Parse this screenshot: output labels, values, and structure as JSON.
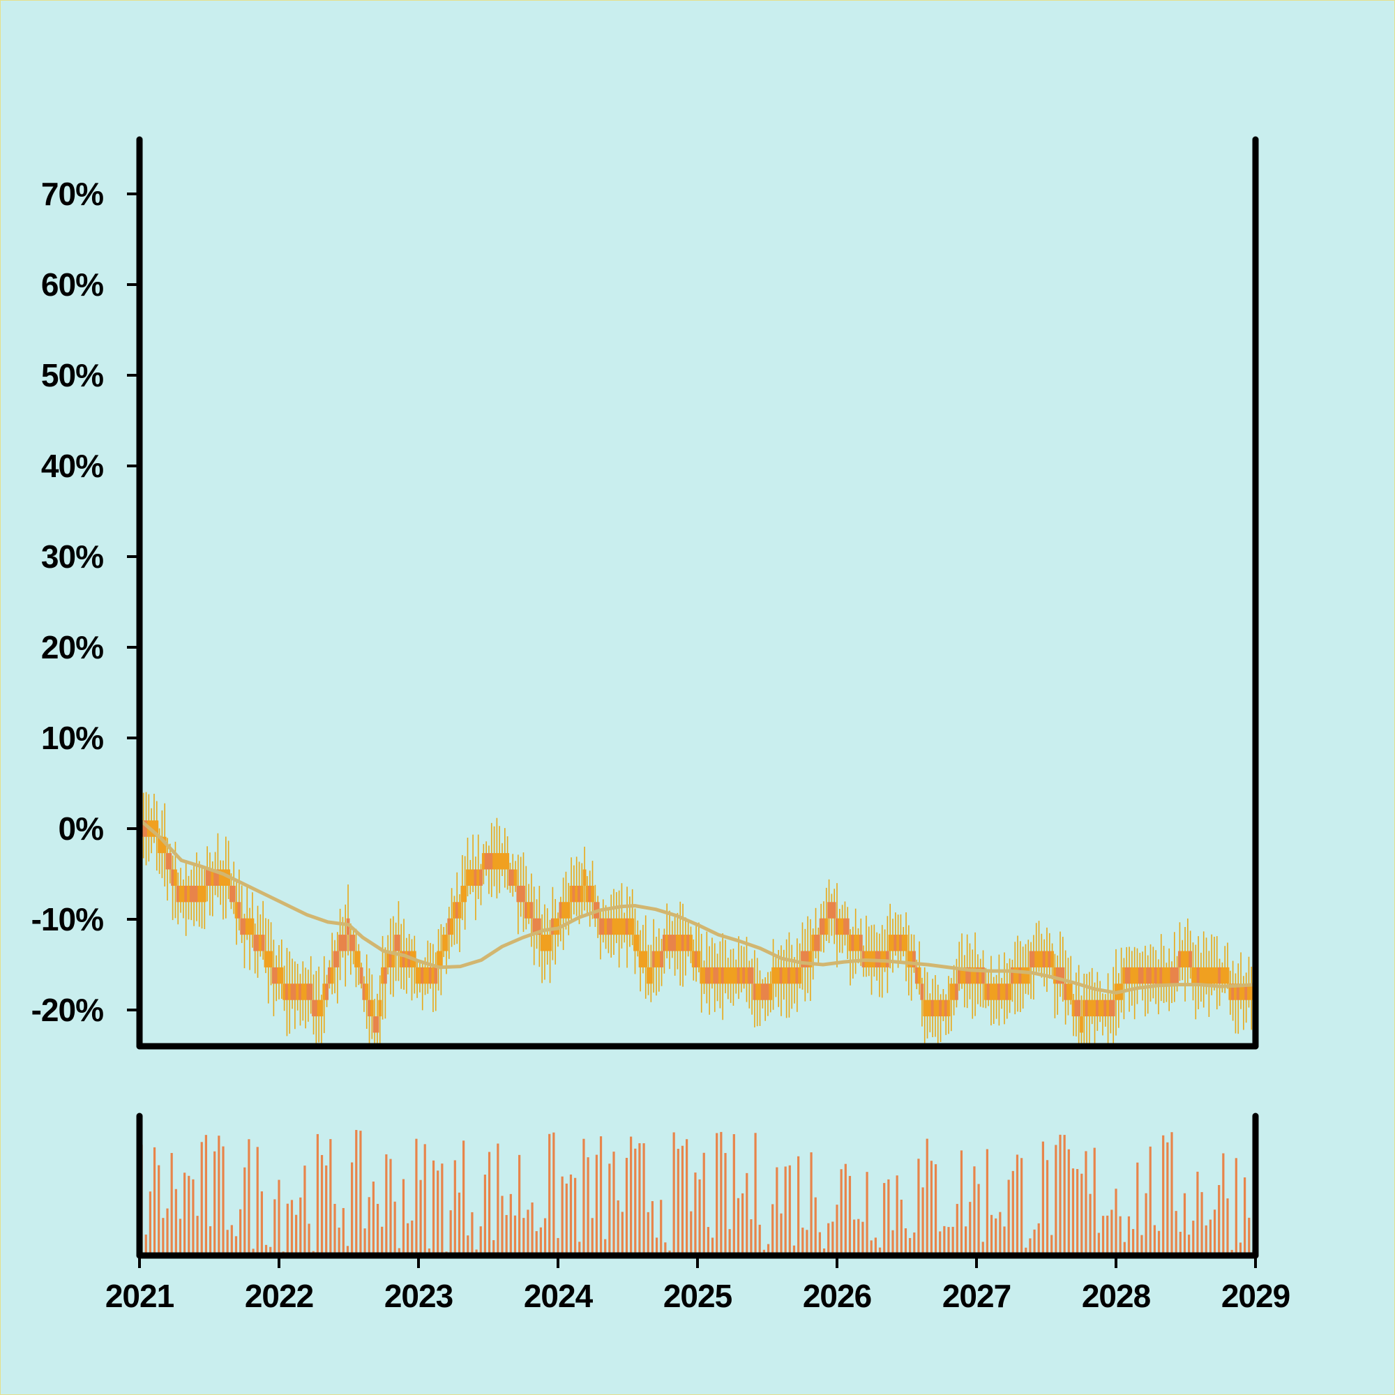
{
  "chart_data": {
    "type": "candlestick",
    "colors": {
      "background": "#c9eeee",
      "up": "#f0a020",
      "down": "#e8844a",
      "wick": "#e8a818",
      "moving_average": "#d2b670",
      "volume": "#e8844a",
      "axis": "#000000"
    },
    "x_axis": {
      "ticks": [
        "2021",
        "2022",
        "2023",
        "2024",
        "2025",
        "2026",
        "2027",
        "2028",
        "2029"
      ],
      "range": [
        2021,
        2029
      ]
    },
    "y_axis": {
      "ticks": [
        "-20%",
        "-10%",
        "0%",
        "10%",
        "20%",
        "30%",
        "40%",
        "50%",
        "60%",
        "70%"
      ],
      "range": [
        -24,
        76
      ]
    },
    "price_path": [
      [
        2021.0,
        1
      ],
      [
        2021.1,
        0
      ],
      [
        2021.2,
        -3
      ],
      [
        2021.3,
        -8
      ],
      [
        2021.4,
        -8
      ],
      [
        2021.5,
        -6
      ],
      [
        2021.65,
        -6
      ],
      [
        2021.75,
        -11
      ],
      [
        2021.85,
        -12
      ],
      [
        2021.95,
        -15
      ],
      [
        2022.05,
        -18
      ],
      [
        2022.2,
        -18
      ],
      [
        2022.3,
        -20
      ],
      [
        2022.4,
        -15
      ],
      [
        2022.5,
        -11
      ],
      [
        2022.6,
        -17
      ],
      [
        2022.7,
        -22
      ],
      [
        2022.75,
        -16
      ],
      [
        2022.85,
        -13
      ],
      [
        2022.95,
        -15
      ],
      [
        2023.1,
        -17
      ],
      [
        2023.2,
        -12
      ],
      [
        2023.35,
        -6
      ],
      [
        2023.5,
        -4
      ],
      [
        2023.6,
        -3
      ],
      [
        2023.7,
        -6
      ],
      [
        2023.8,
        -9
      ],
      [
        2023.9,
        -13
      ],
      [
        2024.0,
        -10
      ],
      [
        2024.1,
        -8
      ],
      [
        2024.2,
        -6
      ],
      [
        2024.3,
        -10
      ],
      [
        2024.45,
        -10
      ],
      [
        2024.55,
        -12
      ],
      [
        2024.65,
        -16
      ],
      [
        2024.8,
        -12
      ],
      [
        2024.95,
        -13
      ],
      [
        2025.05,
        -16
      ],
      [
        2025.2,
        -16
      ],
      [
        2025.35,
        -16
      ],
      [
        2025.45,
        -18
      ],
      [
        2025.55,
        -17
      ],
      [
        2025.7,
        -16
      ],
      [
        2025.85,
        -13
      ],
      [
        2025.95,
        -9
      ],
      [
        2026.05,
        -11
      ],
      [
        2026.2,
        -14
      ],
      [
        2026.35,
        -14
      ],
      [
        2026.45,
        -12
      ],
      [
        2026.55,
        -15
      ],
      [
        2026.65,
        -20
      ],
      [
        2026.8,
        -19
      ],
      [
        2026.9,
        -16
      ],
      [
        2027.05,
        -17
      ],
      [
        2027.15,
        -19
      ],
      [
        2027.25,
        -17
      ],
      [
        2027.4,
        -15
      ],
      [
        2027.55,
        -15
      ],
      [
        2027.65,
        -18
      ],
      [
        2027.75,
        -21
      ],
      [
        2027.85,
        -19
      ],
      [
        2027.95,
        -20
      ],
      [
        2028.05,
        -17
      ],
      [
        2028.2,
        -16
      ],
      [
        2028.35,
        -16
      ],
      [
        2028.5,
        -15
      ],
      [
        2028.65,
        -16
      ],
      [
        2028.8,
        -17
      ],
      [
        2028.9,
        -18
      ],
      [
        2029.0,
        -18
      ]
    ],
    "moving_average": [
      [
        2021.0,
        1
      ],
      [
        2021.15,
        -1
      ],
      [
        2021.3,
        -3.5
      ],
      [
        2021.45,
        -4.2
      ],
      [
        2021.6,
        -5
      ],
      [
        2021.8,
        -6.5
      ],
      [
        2022.0,
        -8
      ],
      [
        2022.2,
        -9.5
      ],
      [
        2022.35,
        -10.3
      ],
      [
        2022.5,
        -10.6
      ],
      [
        2022.6,
        -12
      ],
      [
        2022.75,
        -13.5
      ],
      [
        2022.9,
        -14
      ],
      [
        2023.0,
        -14.6
      ],
      [
        2023.15,
        -15.3
      ],
      [
        2023.3,
        -15.2
      ],
      [
        2023.45,
        -14.5
      ],
      [
        2023.6,
        -13
      ],
      [
        2023.75,
        -12
      ],
      [
        2023.9,
        -11.2
      ],
      [
        2024.0,
        -11
      ],
      [
        2024.15,
        -9.8
      ],
      [
        2024.3,
        -9
      ],
      [
        2024.45,
        -8.6
      ],
      [
        2024.55,
        -8.5
      ],
      [
        2024.7,
        -8.9
      ],
      [
        2024.85,
        -9.6
      ],
      [
        2025.0,
        -10.6
      ],
      [
        2025.15,
        -11.7
      ],
      [
        2025.3,
        -12.4
      ],
      [
        2025.45,
        -13.2
      ],
      [
        2025.6,
        -14.3
      ],
      [
        2025.75,
        -14.8
      ],
      [
        2025.9,
        -15
      ],
      [
        2026.05,
        -14.7
      ],
      [
        2026.2,
        -14.5
      ],
      [
        2026.35,
        -14.6
      ],
      [
        2026.5,
        -14.8
      ],
      [
        2026.65,
        -15
      ],
      [
        2026.8,
        -15.3
      ],
      [
        2026.95,
        -15.6
      ],
      [
        2027.1,
        -15.7
      ],
      [
        2027.25,
        -15.7
      ],
      [
        2027.4,
        -15.9
      ],
      [
        2027.55,
        -16.4
      ],
      [
        2027.7,
        -17
      ],
      [
        2027.85,
        -17.7
      ],
      [
        2028.0,
        -18.1
      ],
      [
        2028.15,
        -17.6
      ],
      [
        2028.3,
        -17.3
      ],
      [
        2028.45,
        -17.2
      ],
      [
        2028.6,
        -17.2
      ],
      [
        2028.75,
        -17.4
      ],
      [
        2028.9,
        -17.3
      ],
      [
        2029.0,
        -17.2
      ]
    ],
    "candle_count": 420,
    "volume_count": 260
  }
}
